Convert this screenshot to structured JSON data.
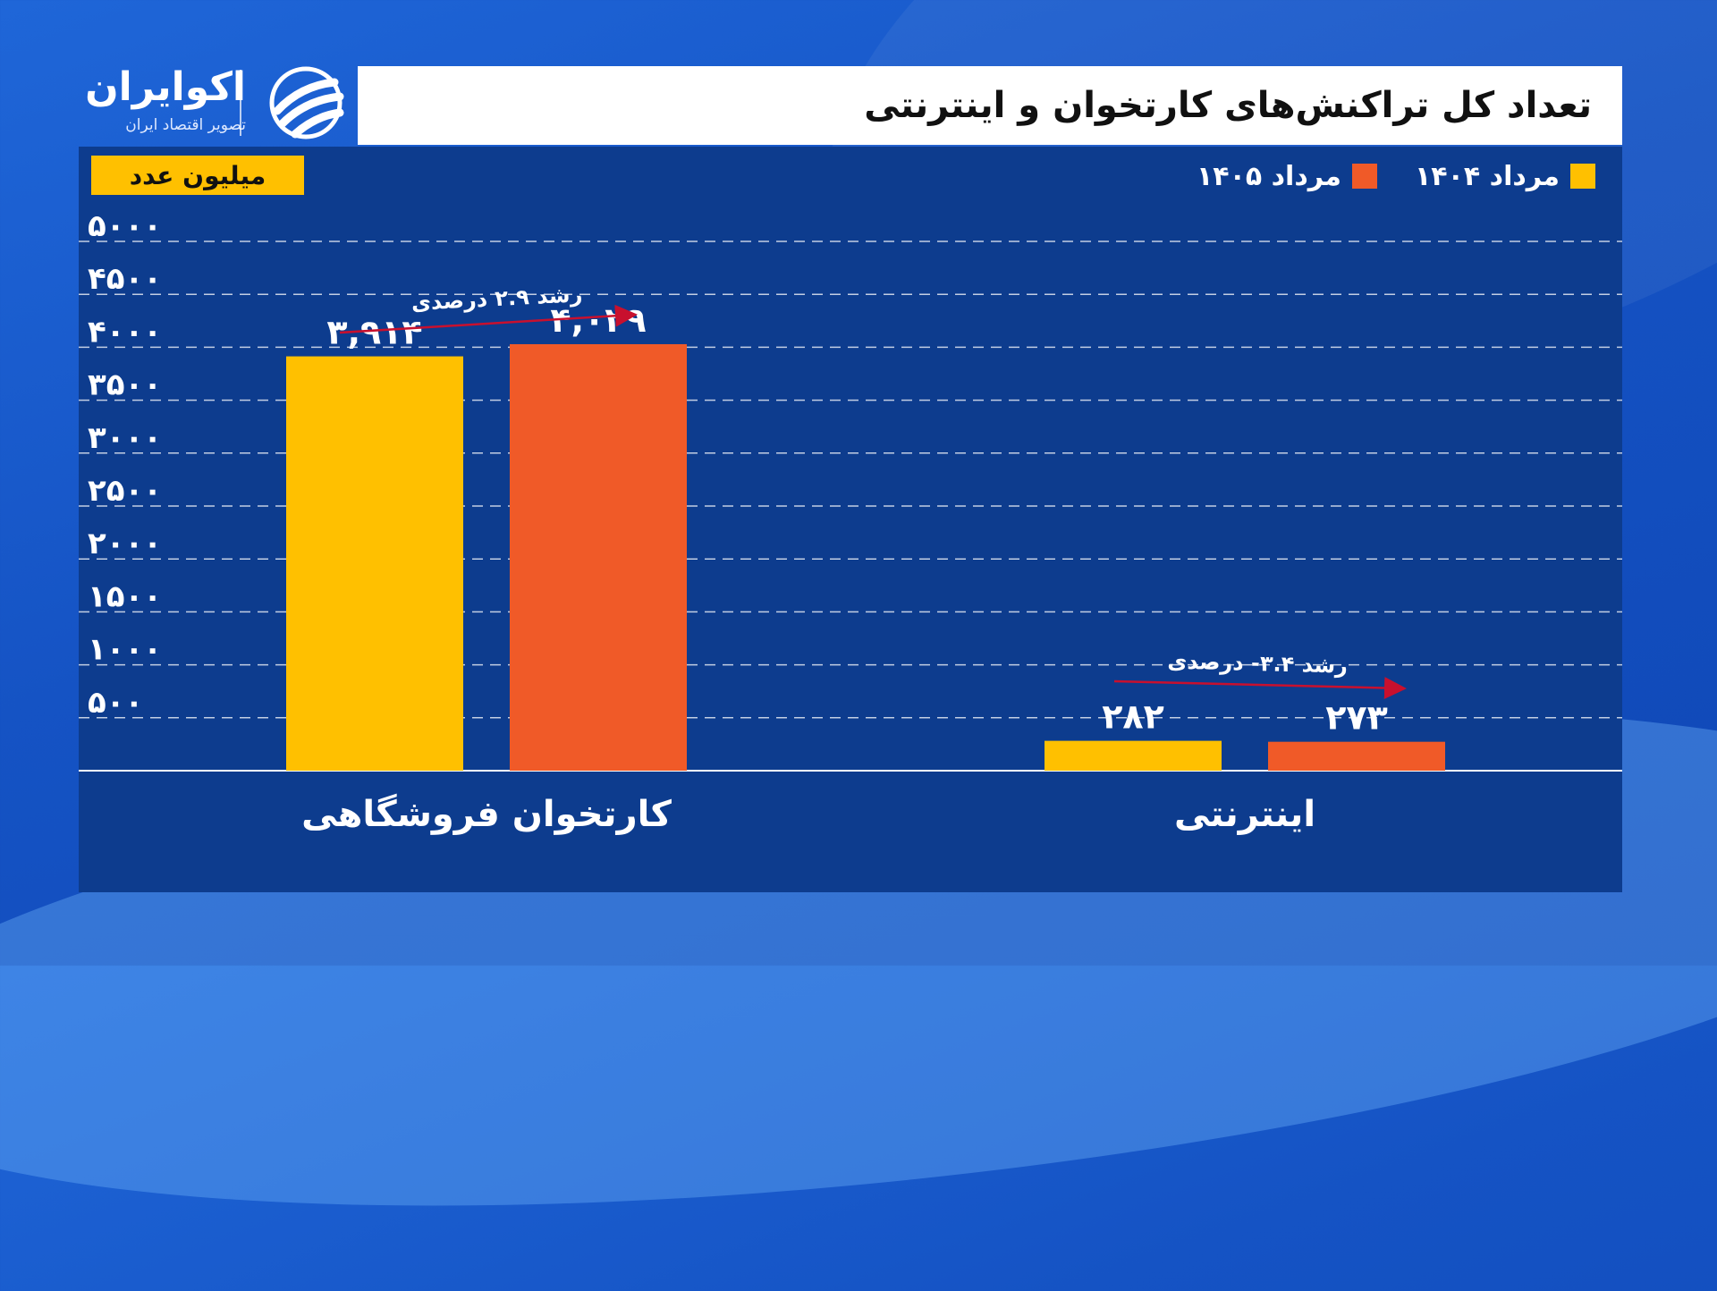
{
  "brand": {
    "name": "اکوایران",
    "tagline": "تصویر اقتصاد ایران"
  },
  "colors": {
    "series_1404": "#ffc000",
    "series_1405": "#f05a28",
    "panel": "#0d3c8e",
    "arrow": "#c8102e"
  },
  "chart_data": {
    "type": "bar",
    "title": "تعداد کل تراکنش‌های کارتخوان و اینترنتی",
    "unit": "میلیون عدد",
    "categories": [
      "کارتخوان فروشگاهی",
      "اینترنتی"
    ],
    "series": [
      {
        "name": "مرداد ۱۴۰۴",
        "values": [
          3914,
          282
        ],
        "labels": [
          "۳,۹۱۴",
          "۲۸۲"
        ]
      },
      {
        "name": "مرداد ۱۴۰۵",
        "values": [
          4029,
          273
        ],
        "labels": [
          "۴,۰۲۹",
          "۲۷۳"
        ]
      }
    ],
    "ylim": [
      0,
      5000
    ],
    "yticks": [
      500,
      1000,
      1500,
      2000,
      2500,
      3000,
      3500,
      4000,
      4500,
      5000
    ],
    "ytick_labels": [
      "۵۰۰",
      "۱۰۰۰",
      "۱۵۰۰",
      "۲۰۰۰",
      "۲۵۰۰",
      "۳۰۰۰",
      "۳۵۰۰",
      "۴۰۰۰",
      "۴۵۰۰",
      "۵۰۰۰"
    ],
    "grid": true,
    "legend_position": "top-right",
    "annotations": [
      "رشد ۲.۹ درصدی",
      "رشد ۳.۴- درصدی"
    ]
  }
}
